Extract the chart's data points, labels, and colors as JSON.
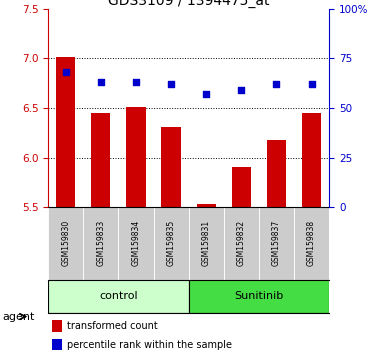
{
  "title": "GDS3109 / 1394475_at",
  "samples": [
    "GSM159830",
    "GSM159833",
    "GSM159834",
    "GSM159835",
    "GSM159831",
    "GSM159832",
    "GSM159837",
    "GSM159838"
  ],
  "bar_values": [
    7.01,
    6.45,
    6.51,
    6.31,
    5.53,
    5.9,
    6.18,
    6.45
  ],
  "dot_values": [
    68,
    63,
    63,
    62,
    57,
    59,
    62,
    62
  ],
  "ylim_left": [
    5.5,
    7.5
  ],
  "ylim_right": [
    0,
    100
  ],
  "yticks_left": [
    5.5,
    6.0,
    6.5,
    7.0,
    7.5
  ],
  "yticks_right": [
    0,
    25,
    50,
    75,
    100
  ],
  "ytick_labels_right": [
    "0",
    "25",
    "50",
    "75",
    "100%"
  ],
  "bar_color": "#cc0000",
  "dot_color": "#0000cc",
  "bar_bottom": 5.5,
  "control_label": "control",
  "control_color": "#ccffcc",
  "sunitinib_label": "Sunitinib",
  "sunitinib_color": "#44dd44",
  "group_label": "agent",
  "legend_bar_label": "transformed count",
  "legend_dot_label": "percentile rank within the sample",
  "sample_cell_color": "#cccccc",
  "title_fontsize": 10,
  "tick_fontsize": 7.5,
  "sample_fontsize": 5.5,
  "band_fontsize": 8,
  "legend_fontsize": 7
}
